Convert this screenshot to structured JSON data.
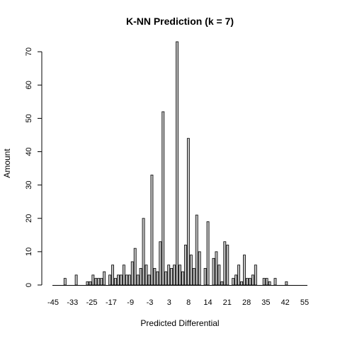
{
  "chart_data": {
    "type": "bar",
    "title": "K-NN Prediction (k = 7)",
    "xlabel": "Predicted Differential",
    "ylabel": "Amount",
    "ylim": [
      0,
      73
    ],
    "y_ticks": [
      0,
      10,
      20,
      30,
      40,
      50,
      60,
      70
    ],
    "x_tick_labels": [
      "-45",
      "-33",
      "-25",
      "-17",
      "-9",
      "-3",
      "3",
      "8",
      "14",
      "21",
      "28",
      "35",
      "42",
      "55"
    ],
    "grid": false,
    "bar_fill": "#bebebe",
    "bar_stroke": "#000000",
    "values": [
      0,
      0,
      0,
      0,
      2,
      0,
      0,
      0,
      3,
      0,
      0,
      0,
      1,
      1,
      3,
      2,
      2,
      2,
      4,
      0,
      3,
      6,
      2,
      3,
      3,
      6,
      3,
      3,
      7,
      11,
      3,
      5,
      20,
      6,
      3,
      33,
      5,
      4,
      13,
      52,
      4,
      6,
      5,
      6,
      73,
      6,
      4,
      12,
      44,
      9,
      5,
      21,
      10,
      0,
      5,
      19,
      0,
      8,
      10,
      6,
      1,
      13,
      12,
      0,
      2,
      3,
      6,
      1,
      9,
      2,
      2,
      3,
      6,
      0,
      0,
      2,
      2,
      1,
      0,
      2,
      0,
      0,
      0,
      1,
      0,
      0,
      0,
      0,
      0,
      0,
      0
    ]
  }
}
